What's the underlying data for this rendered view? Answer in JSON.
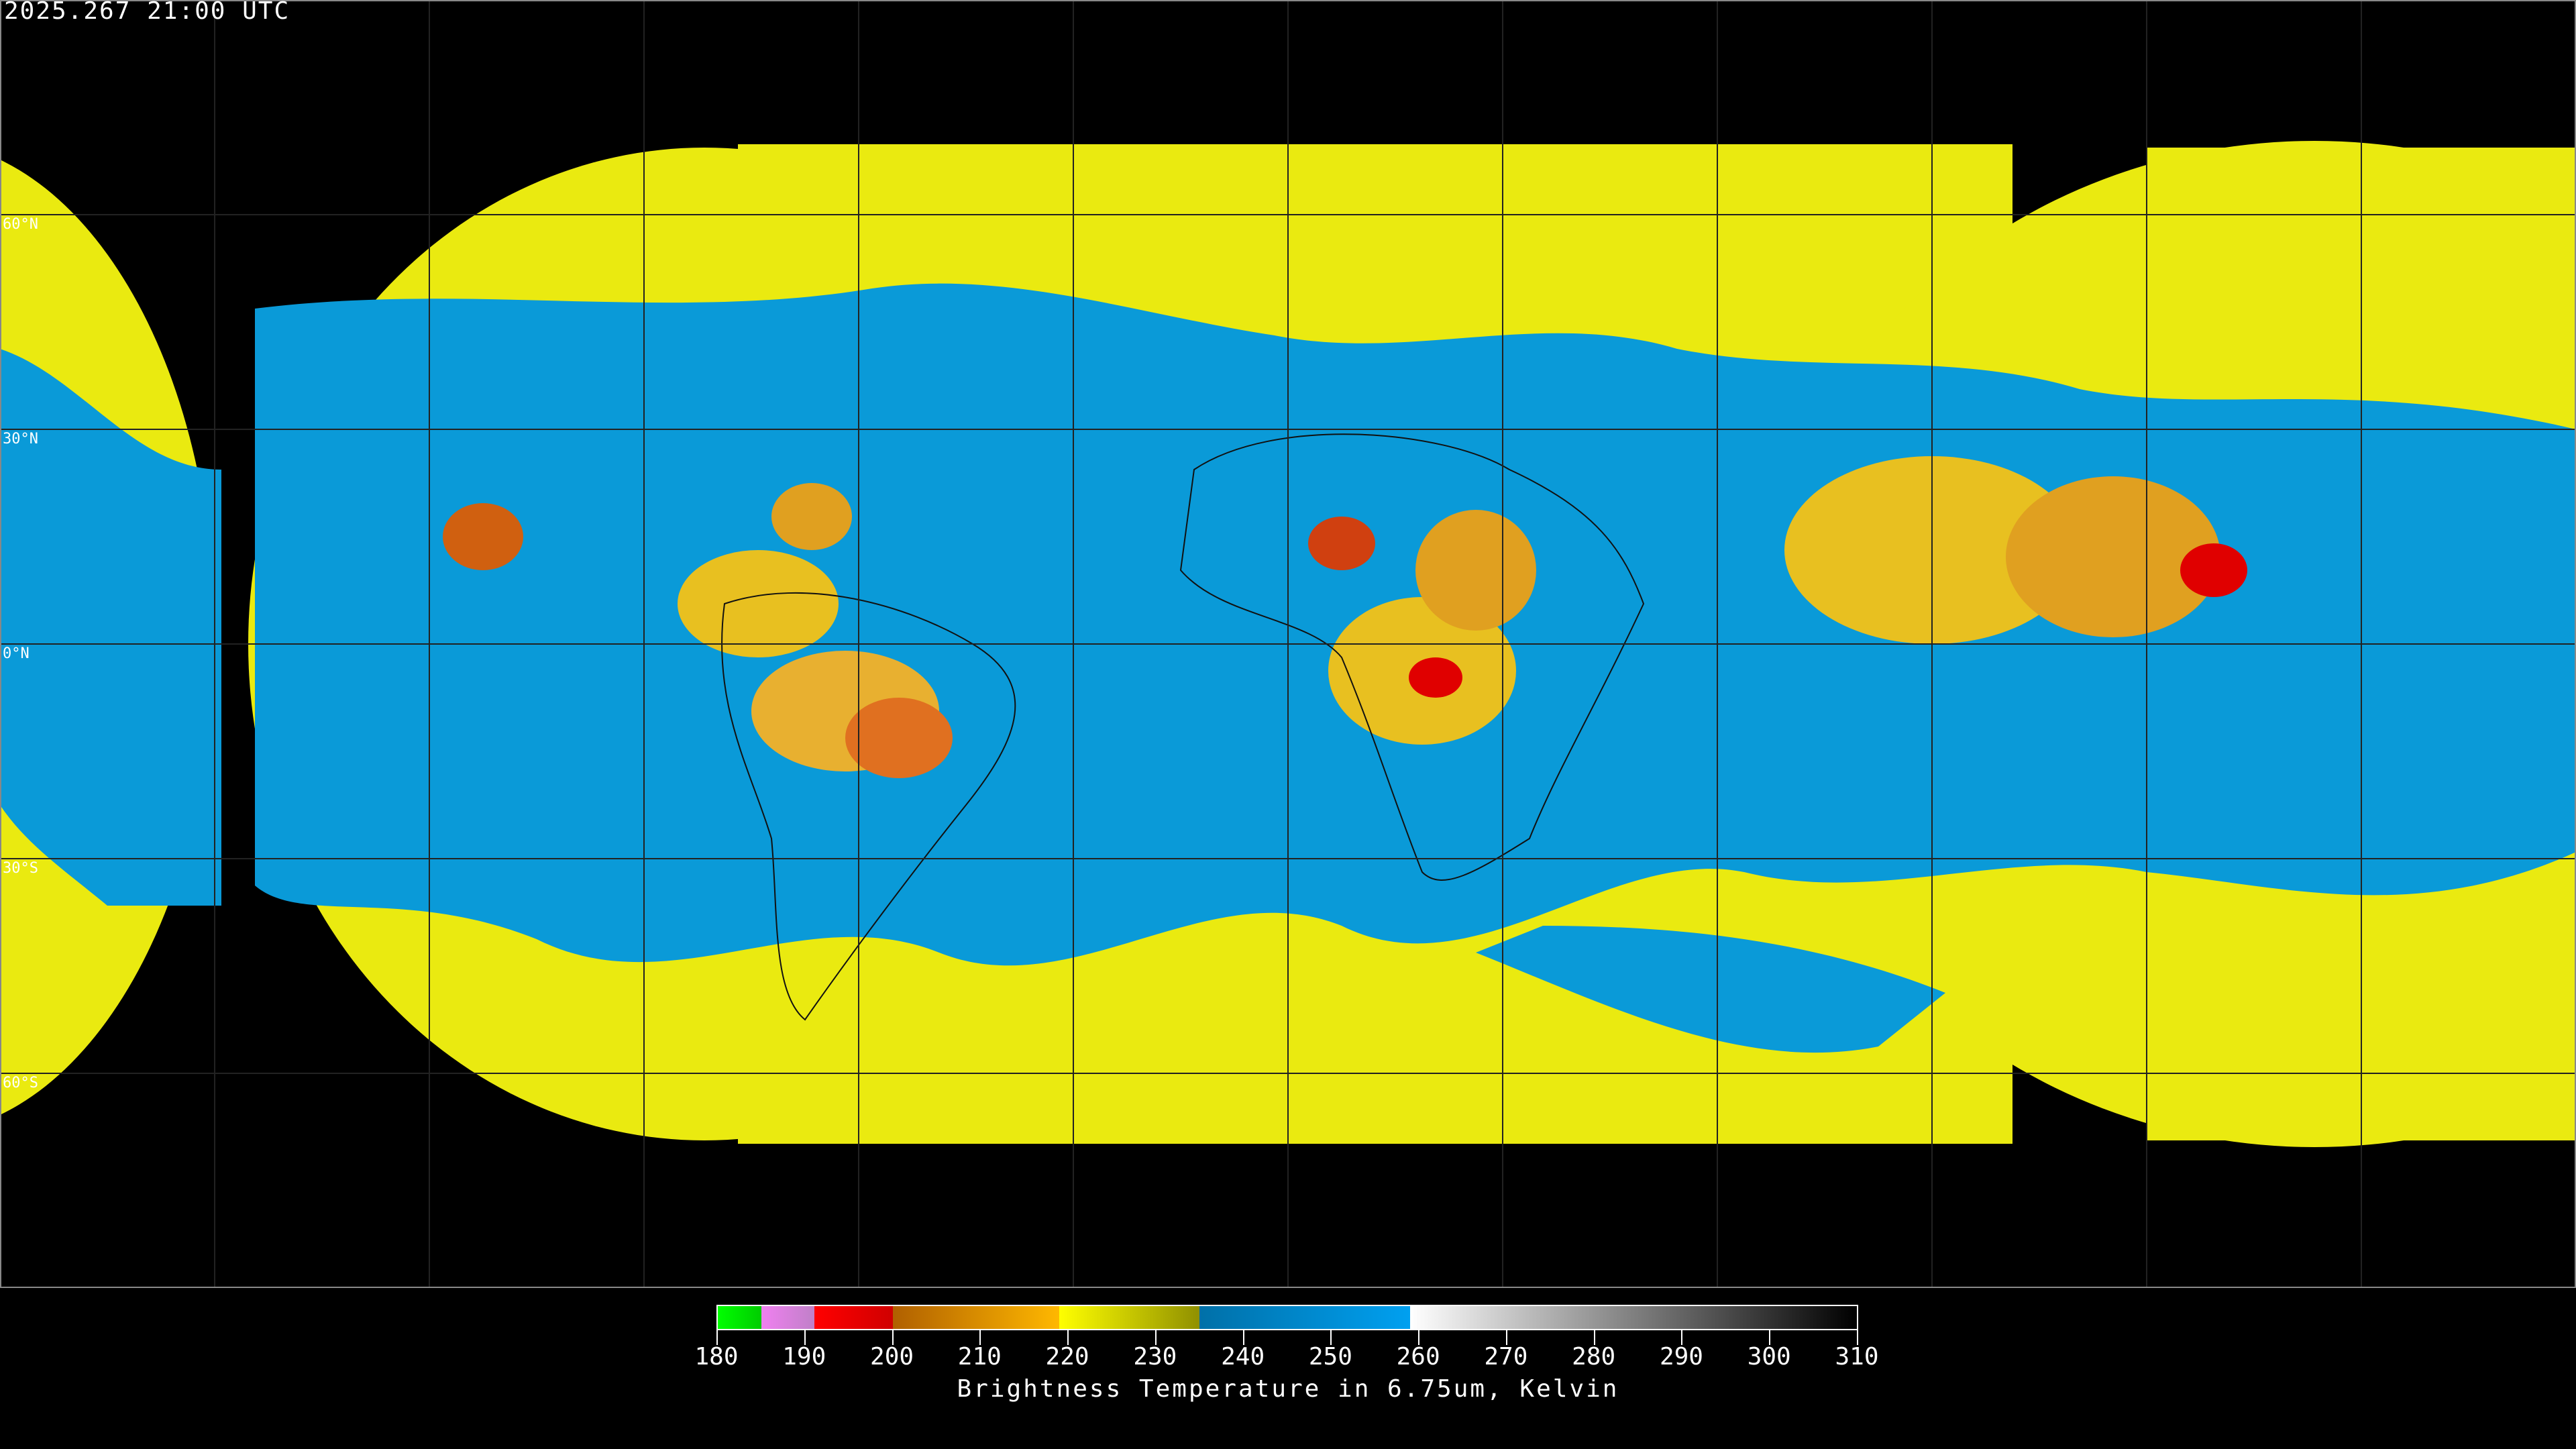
{
  "header": {
    "timestamp": "2025.267 21:00 UTC"
  },
  "map": {
    "projection": "equirectangular",
    "background": "#000000",
    "lat_labels": [
      "60°N",
      "30°N",
      "0°N",
      "30°S",
      "60°S"
    ],
    "grid_spacing_degrees": 30,
    "colors": {
      "cold_cloud": "#ff0000",
      "mid": "#ffb000",
      "yellow": "#f0f000",
      "dry": "#0099dd"
    }
  },
  "colorbar": {
    "title": "Brightness Temperature in 6.75um, Kelvin",
    "ticks": [
      "180",
      "190",
      "200",
      "210",
      "220",
      "230",
      "240",
      "250",
      "260",
      "270",
      "280",
      "290",
      "300",
      "310"
    ],
    "range": [
      180,
      310
    ],
    "segments": [
      {
        "from": 180,
        "to": 185,
        "colors": [
          "#00ff00",
          "#00cc00"
        ]
      },
      {
        "from": 185,
        "to": 191,
        "colors": [
          "#f080f0",
          "#c080c8"
        ]
      },
      {
        "from": 191,
        "to": 200,
        "colors": [
          "#ff0000",
          "#d00000"
        ]
      },
      {
        "from": 200,
        "to": 219,
        "colors": [
          "#b06000",
          "#ffb800"
        ]
      },
      {
        "from": 219,
        "to": 235,
        "colors": [
          "#ffff00",
          "#909000"
        ]
      },
      {
        "from": 235,
        "to": 259,
        "colors": [
          "#0070a8",
          "#00a0f0"
        ]
      },
      {
        "from": 259,
        "to": 310,
        "colors": [
          "#ffffff",
          "#000000"
        ]
      }
    ]
  }
}
